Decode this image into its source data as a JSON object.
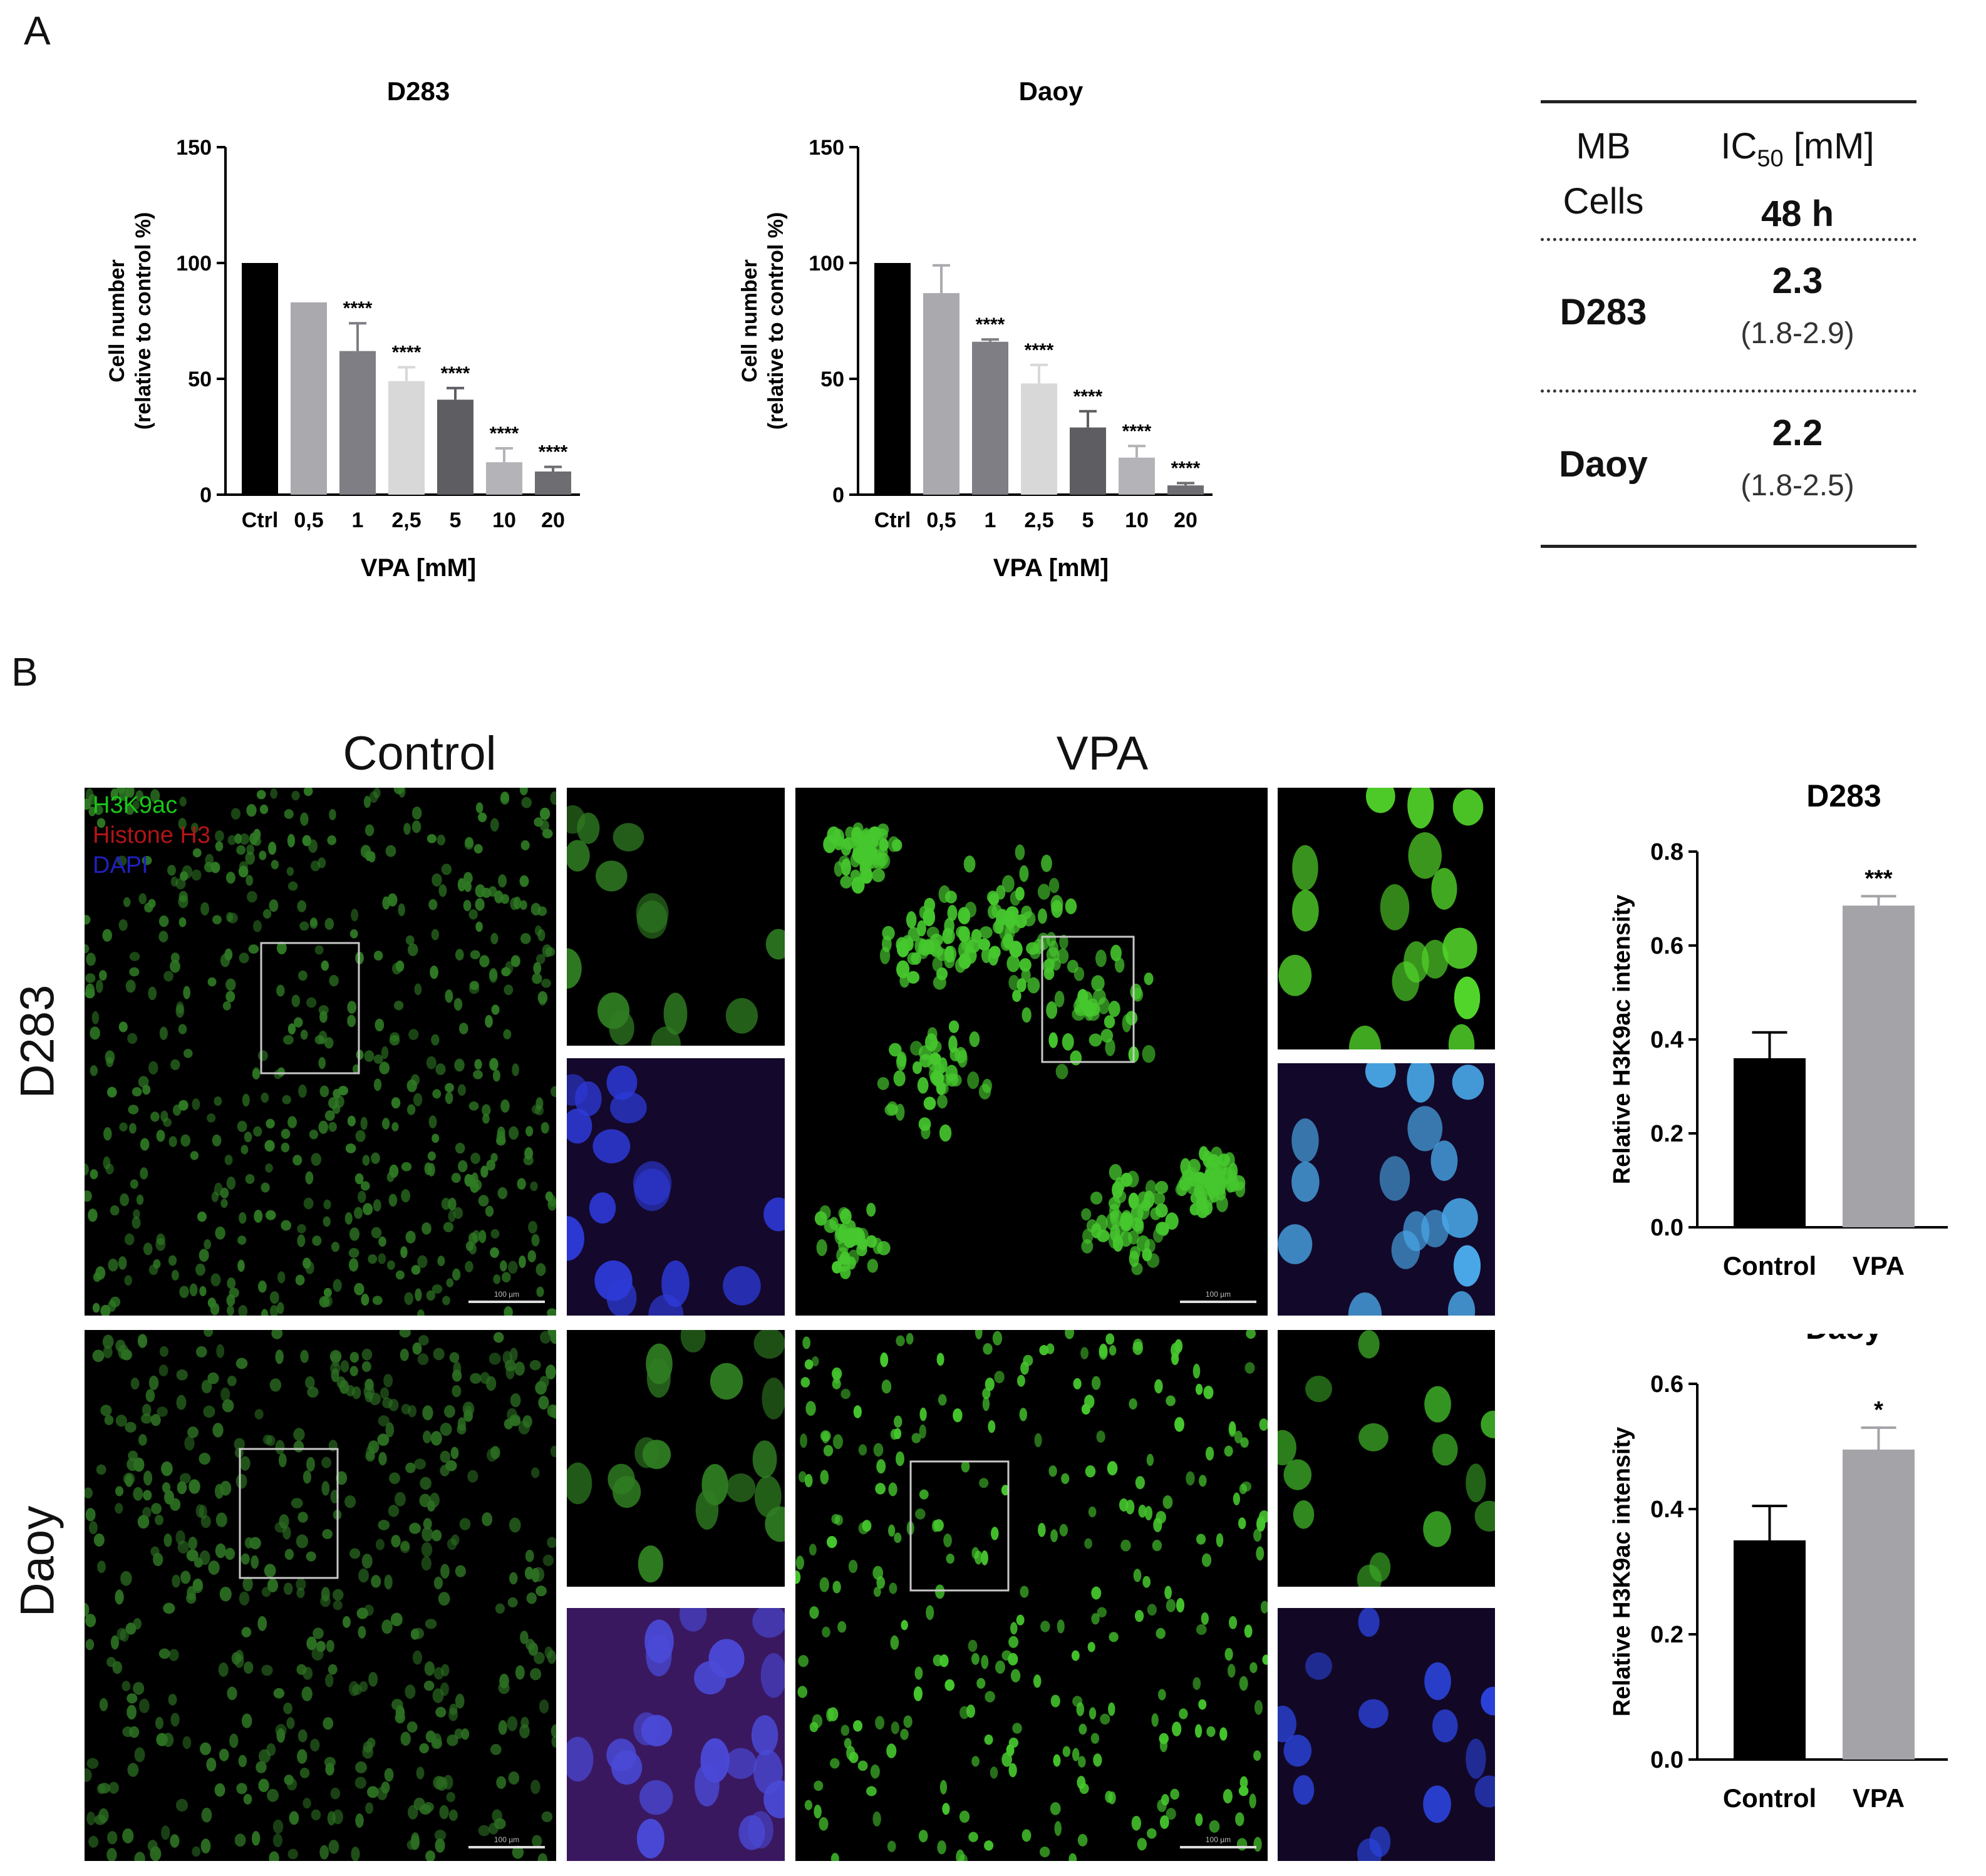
{
  "panels": {
    "a": "A",
    "b": "B"
  },
  "viability_charts": [
    {
      "title": "D283",
      "type": "bar",
      "categories": [
        "Ctrl",
        "0,5",
        "1",
        "2,5",
        "5",
        "10",
        "20"
      ],
      "values": [
        100,
        83,
        62,
        49,
        41,
        14,
        10
      ],
      "errors": [
        0,
        0,
        12,
        6,
        5,
        6,
        2
      ],
      "significance": [
        "",
        "",
        "****",
        "****",
        "****",
        "****",
        "****"
      ],
      "colors": [
        "#000000",
        "#a9a9ae",
        "#7e7e84",
        "#d8d8d8",
        "#5e5e62",
        "#b4b4b8",
        "#6e6e72"
      ],
      "ylabel_line1": "Cell number",
      "ylabel_line2": "(relative to control %)",
      "xlabel": "VPA [mM]",
      "ylim": [
        0,
        150
      ],
      "yticks": [
        "0",
        "50",
        "100",
        "150"
      ]
    },
    {
      "title": "Daoy",
      "type": "bar",
      "categories": [
        "Ctrl",
        "0,5",
        "1",
        "2,5",
        "5",
        "10",
        "20"
      ],
      "values": [
        100,
        87,
        66,
        48,
        29,
        16,
        4
      ],
      "errors": [
        0,
        12,
        1,
        8,
        7,
        5,
        1
      ],
      "significance": [
        "",
        "",
        "****",
        "****",
        "****",
        "****",
        "****"
      ],
      "colors": [
        "#000000",
        "#a9a9ae",
        "#7e7e84",
        "#d8d8d8",
        "#5e5e62",
        "#b4b4b8",
        "#6e6e72"
      ],
      "ylabel_line1": "Cell number",
      "ylabel_line2": "(relative to control %)",
      "xlabel": "VPA [mM]",
      "ylim": [
        0,
        150
      ],
      "yticks": [
        "0",
        "50",
        "100",
        "150"
      ]
    }
  ],
  "ic50_table": {
    "header_col1_line1": "MB",
    "header_col1_line2": "Cells",
    "header_col2_main": "IC",
    "header_col2_sub": "50",
    "header_col2_unit": " [mM]",
    "header_col2_line2": "48 h",
    "rows": [
      {
        "cell": "D283",
        "value": "2.3",
        "ci": "(1.8-2.9)"
      },
      {
        "cell": "Daoy",
        "value": "2.2",
        "ci": "(1.8-2.5)"
      }
    ]
  },
  "microscopy": {
    "conditions": [
      "Control",
      "VPA"
    ],
    "cell_lines": [
      "D283",
      "Daoy"
    ],
    "legend": [
      {
        "label": "H3K9ac",
        "color": "#19c619"
      },
      {
        "label": "Histone H3",
        "color": "#b01515"
      },
      {
        "label": "DAPI",
        "color": "#2020c0"
      }
    ],
    "scale_bar_label": "100 µm"
  },
  "chart_data": [
    {
      "type": "bar",
      "title": "D283",
      "categories": [
        "Control",
        "VPA"
      ],
      "values": [
        0.36,
        0.685
      ],
      "errors": [
        0.055,
        0.02
      ],
      "significance": [
        "",
        "***"
      ],
      "colors": [
        "#000000",
        "#a4a4a8"
      ],
      "ylabel": "Relative H3K9ac intensity",
      "xlabel": "",
      "ylim": [
        0,
        0.8
      ],
      "yticks": [
        "0.0",
        "0.2",
        "0.4",
        "0.6",
        "0.8"
      ]
    },
    {
      "type": "bar",
      "title": "Daoy",
      "categories": [
        "Control",
        "VPA"
      ],
      "values": [
        0.35,
        0.495
      ],
      "errors": [
        0.055,
        0.035
      ],
      "significance": [
        "",
        "*"
      ],
      "colors": [
        "#000000",
        "#a4a4a8"
      ],
      "ylabel": "Relative H3K9ac intensity",
      "xlabel": "",
      "ylim": [
        0,
        0.6
      ],
      "yticks": [
        "0.0",
        "0.2",
        "0.4",
        "0.6"
      ]
    }
  ]
}
